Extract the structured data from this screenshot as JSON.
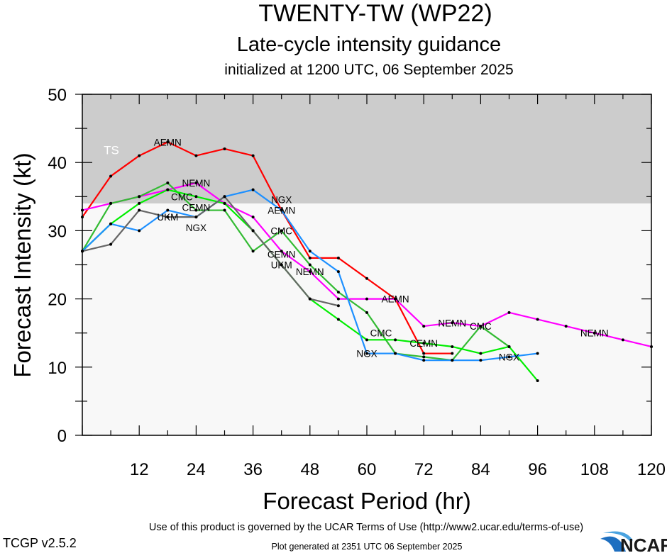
{
  "chart_data": {
    "type": "line",
    "title": "TWENTY-TW (WP22)",
    "subtitle": "Late-cycle intensity guidance",
    "subtitle2": "initialized at 1200 UTC, 06 September 2025",
    "xlabel": "Forecast Period (hr)",
    "ylabel": "Forecast Intensity (kt)",
    "xlim": [
      0,
      120
    ],
    "ylim": [
      0,
      50
    ],
    "xticks": [
      12,
      24,
      36,
      48,
      60,
      72,
      84,
      96,
      108,
      120
    ],
    "yticks": [
      0,
      10,
      20,
      30,
      40,
      50
    ],
    "grid": false,
    "bands": [
      {
        "label": "TS",
        "from": 34,
        "to": 50,
        "color": "#cccccc"
      }
    ],
    "below_band_color": "#f8f8f8",
    "series": [
      {
        "name": "AEMN",
        "color": "#ff0000",
        "x": [
          0,
          6,
          12,
          18,
          24,
          30,
          36,
          42,
          48,
          54,
          60,
          66,
          72,
          78
        ],
        "y": [
          32,
          38,
          41,
          43,
          41,
          42,
          41,
          33,
          26,
          26,
          23,
          20,
          12,
          12
        ],
        "label_hours": [
          18,
          42,
          66
        ]
      },
      {
        "name": "NEMN",
        "color": "#ff00ff",
        "x": [
          0,
          6,
          12,
          18,
          24,
          30,
          36,
          42,
          48,
          54,
          60,
          66,
          72,
          78,
          84,
          90,
          96,
          102,
          108,
          114,
          120
        ],
        "y": [
          33,
          34,
          35,
          36,
          37,
          34,
          32,
          27,
          24,
          20,
          20,
          20,
          16,
          16.5,
          16,
          18,
          17,
          16,
          15,
          14,
          13
        ],
        "label_hours": [
          24,
          48,
          78,
          108
        ]
      },
      {
        "name": "CMC",
        "color": "#33bb33",
        "x": [
          0,
          6,
          12,
          18,
          24,
          30,
          36,
          42,
          48,
          54,
          60,
          66,
          72,
          78,
          84,
          90
        ],
        "y": [
          27,
          34,
          35,
          37,
          33,
          33,
          27,
          30,
          25,
          21,
          18,
          12,
          11.5,
          11,
          16,
          13
        ],
        "label_hours": [
          21,
          42,
          63,
          84
        ]
      },
      {
        "name": "CEMN",
        "color": "#00ee00",
        "x": [
          0,
          6,
          12,
          18,
          24,
          30,
          36,
          42,
          48,
          54,
          60,
          66,
          72,
          78,
          84,
          90,
          96
        ],
        "y": [
          27,
          31,
          34,
          36,
          35,
          34,
          30,
          25,
          20,
          17,
          14,
          14,
          13.5,
          13,
          12,
          13,
          8
        ],
        "label_hours": [
          24,
          42,
          72
        ]
      },
      {
        "name": "NGX",
        "color": "#1e90ff",
        "x": [
          0,
          6,
          12,
          18,
          24,
          30,
          36,
          42,
          48,
          54,
          60,
          66,
          72,
          78,
          84,
          90,
          96
        ],
        "y": [
          27,
          31,
          30,
          33,
          32,
          35,
          36,
          33,
          27,
          24,
          12,
          12,
          11,
          11,
          11,
          11.5,
          12
        ],
        "label_hours": [
          24,
          42,
          60,
          90
        ]
      },
      {
        "name": "UKM",
        "color": "#666666",
        "x": [
          0,
          6,
          12,
          18,
          24,
          30,
          36,
          42,
          48,
          54
        ],
        "y": [
          27,
          28,
          33,
          32,
          32,
          35,
          30,
          25,
          20,
          19
        ],
        "label_hours": [
          24,
          42
        ]
      }
    ]
  },
  "footer": {
    "terms": "Use of this product is governed by the UCAR Terms of Use (http://www2.ucar.edu/terms-of-use)",
    "version": "TCGP v2.5.2",
    "generated": "Plot generated at 2351 UTC   06 September 2025",
    "logo": "NCAR"
  }
}
